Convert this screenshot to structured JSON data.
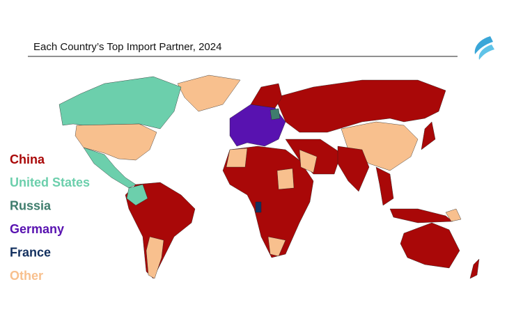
{
  "header": {
    "title": "Each Country’s Top Import Partner, 2024"
  },
  "legend": {
    "items": [
      {
        "label": "China",
        "color": "#a90808"
      },
      {
        "label": "United States",
        "color": "#6ccfac"
      },
      {
        "label": "Russia",
        "color": "#3f7d6d"
      },
      {
        "label": "Germany",
        "color": "#5812b0"
      },
      {
        "label": "France",
        "color": "#13305f"
      },
      {
        "label": "Other",
        "color": "#f8c08e"
      }
    ]
  }
}
